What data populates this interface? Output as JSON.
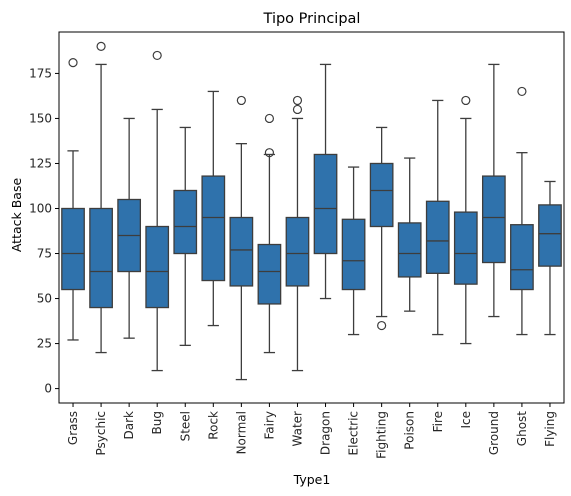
{
  "chart_data": {
    "type": "box",
    "title": "Tipo Principal",
    "xlabel": "Type1",
    "ylabel": "Attack Base",
    "ylim": [
      -8,
      198
    ],
    "yticks": [
      0,
      25,
      50,
      75,
      100,
      125,
      150,
      175
    ],
    "grid": false,
    "legend": "none",
    "box_color": "#2f72ac",
    "line_color": "#3d3d3d",
    "categories": [
      "Grass",
      "Psychic",
      "Dark",
      "Bug",
      "Steel",
      "Rock",
      "Normal",
      "Fairy",
      "Water",
      "Dragon",
      "Electric",
      "Fighting",
      "Poison",
      "Fire",
      "Ice",
      "Ground",
      "Ghost",
      "Flying"
    ],
    "boxes": [
      {
        "category": "Grass",
        "whislo": 27,
        "q1": 55,
        "med": 75,
        "q3": 100,
        "whishi": 132,
        "fliers": [
          181
        ]
      },
      {
        "category": "Psychic",
        "whislo": 20,
        "q1": 45,
        "med": 65,
        "q3": 100,
        "whishi": 180,
        "fliers": [
          190
        ]
      },
      {
        "category": "Dark",
        "whislo": 28,
        "q1": 65,
        "med": 85,
        "q3": 105,
        "whishi": 150,
        "fliers": []
      },
      {
        "category": "Bug",
        "whislo": 10,
        "q1": 45,
        "med": 65,
        "q3": 90,
        "whishi": 155,
        "fliers": [
          185
        ]
      },
      {
        "category": "Steel",
        "whislo": 24,
        "q1": 75,
        "med": 90,
        "q3": 110,
        "whishi": 145,
        "fliers": []
      },
      {
        "category": "Rock",
        "whislo": 35,
        "q1": 60,
        "med": 95,
        "q3": 118,
        "whishi": 165,
        "fliers": []
      },
      {
        "category": "Normal",
        "whislo": 5,
        "q1": 57,
        "med": 77,
        "q3": 95,
        "whishi": 136,
        "fliers": [
          160
        ]
      },
      {
        "category": "Fairy",
        "whislo": 20,
        "q1": 47,
        "med": 65,
        "q3": 80,
        "whishi": 130,
        "fliers": [
          131,
          150
        ]
      },
      {
        "category": "Water",
        "whislo": 10,
        "q1": 57,
        "med": 75,
        "q3": 95,
        "whishi": 150,
        "fliers": [
          155,
          160
        ]
      },
      {
        "category": "Dragon",
        "whislo": 50,
        "q1": 75,
        "med": 100,
        "q3": 130,
        "whishi": 180,
        "fliers": []
      },
      {
        "category": "Electric",
        "whislo": 30,
        "q1": 55,
        "med": 71,
        "q3": 94,
        "whishi": 123,
        "fliers": []
      },
      {
        "category": "Fighting",
        "whislo": 40,
        "q1": 90,
        "med": 110,
        "q3": 125,
        "whishi": 145,
        "fliers": [
          35
        ]
      },
      {
        "category": "Poison",
        "whislo": 43,
        "q1": 62,
        "med": 75,
        "q3": 92,
        "whishi": 128,
        "fliers": []
      },
      {
        "category": "Fire",
        "whislo": 30,
        "q1": 64,
        "med": 82,
        "q3": 104,
        "whishi": 160,
        "fliers": []
      },
      {
        "category": "Ice",
        "whislo": 25,
        "q1": 58,
        "med": 75,
        "q3": 98,
        "whishi": 150,
        "fliers": [
          160
        ]
      },
      {
        "category": "Ground",
        "whislo": 40,
        "q1": 70,
        "med": 95,
        "q3": 118,
        "whishi": 180,
        "fliers": []
      },
      {
        "category": "Ghost",
        "whislo": 30,
        "q1": 55,
        "med": 66,
        "q3": 91,
        "whishi": 131,
        "fliers": [
          165
        ]
      },
      {
        "category": "Flying",
        "whislo": 30,
        "q1": 68,
        "med": 86,
        "q3": 102,
        "whishi": 115,
        "fliers": []
      }
    ]
  }
}
